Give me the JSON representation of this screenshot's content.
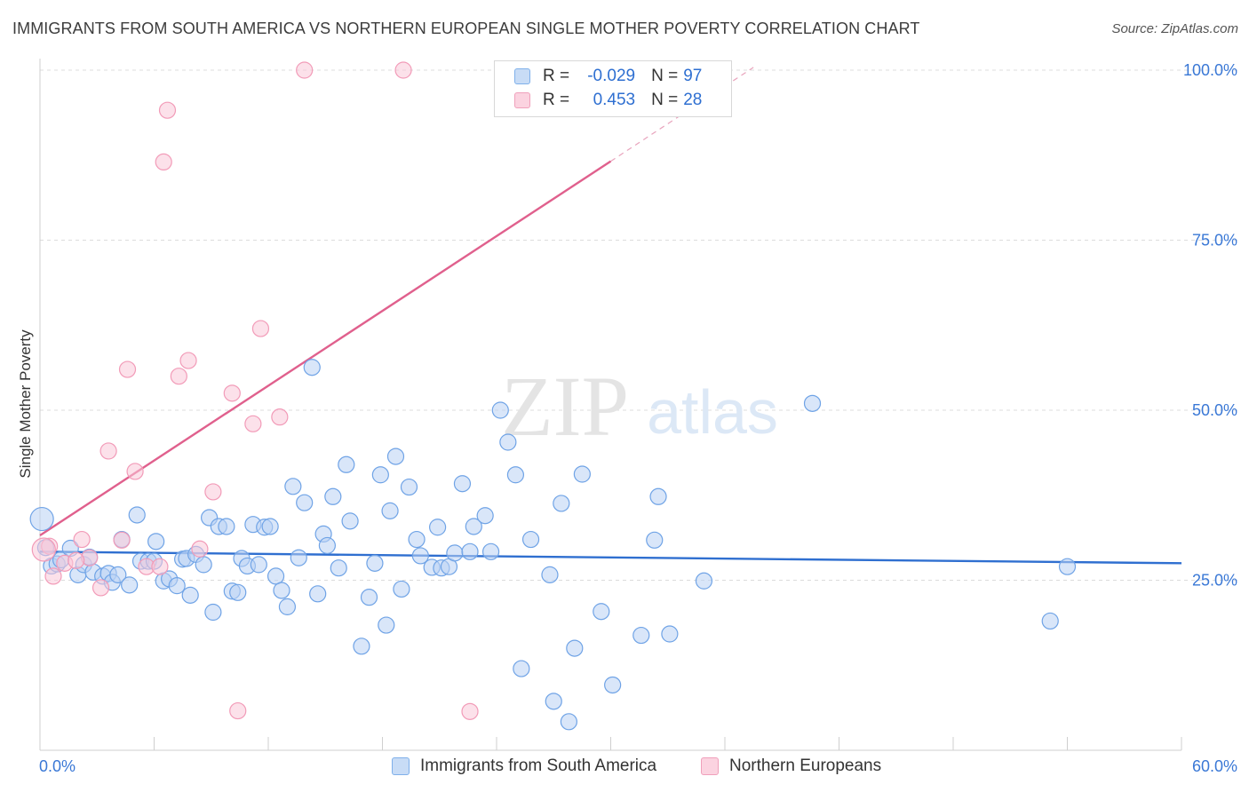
{
  "title": "IMMIGRANTS FROM SOUTH AMERICA VS NORTHERN EUROPEAN SINGLE MOTHER POVERTY CORRELATION CHART",
  "source": "Source: ZipAtlas.com",
  "watermark": {
    "zip": "ZIP",
    "atlas": "atlas"
  },
  "legend_stats": [
    {
      "r_label": "R =",
      "r_value": "-0.029",
      "n_label": "N =",
      "n_value": "97",
      "color": "#7fb0ea"
    },
    {
      "r_label": "R =",
      "r_value": "0.453",
      "n_label": "N =",
      "n_value": "28",
      "color": "#f0a0bb"
    }
  ],
  "chart_data": {
    "type": "scatter",
    "title": "IMMIGRANTS FROM SOUTH AMERICA VS NORTHERN EUROPEAN SINGLE MOTHER POVERTY CORRELATION CHART",
    "xlabel": "",
    "ylabel": "Single Mother Poverty",
    "xlim": [
      0,
      60
    ],
    "ylim": [
      0,
      100
    ],
    "x_tick_labels": [
      "0.0%",
      "60.0%"
    ],
    "y_tick_labels": [
      "25.0%",
      "50.0%",
      "75.0%",
      "100.0%"
    ],
    "y_ticks": [
      25,
      50,
      75,
      100
    ],
    "grid": true,
    "legend_position": "bottom",
    "series": [
      {
        "name": "Immigrants from South America",
        "color": "#6fa3e6",
        "trend": {
          "x": [
            0,
            60
          ],
          "y": [
            29.2,
            27.5
          ],
          "color": "#2f6fd0"
        },
        "points": [
          [
            0.1,
            34.0
          ],
          [
            0.3,
            29.8
          ],
          [
            0.6,
            27.1
          ],
          [
            0.9,
            27.4
          ],
          [
            1.1,
            28.0
          ],
          [
            1.6,
            29.7
          ],
          [
            2.0,
            25.8
          ],
          [
            2.3,
            27.3
          ],
          [
            2.6,
            28.4
          ],
          [
            2.8,
            26.2
          ],
          [
            3.3,
            25.6
          ],
          [
            3.6,
            26.0
          ],
          [
            3.8,
            24.7
          ],
          [
            4.1,
            25.8
          ],
          [
            4.3,
            31.0
          ],
          [
            4.7,
            24.3
          ],
          [
            5.1,
            34.6
          ],
          [
            5.3,
            27.8
          ],
          [
            5.7,
            27.8
          ],
          [
            6.0,
            27.8
          ],
          [
            6.1,
            30.7
          ],
          [
            6.5,
            24.9
          ],
          [
            6.8,
            25.2
          ],
          [
            7.2,
            24.2
          ],
          [
            7.5,
            28.1
          ],
          [
            7.7,
            28.2
          ],
          [
            7.9,
            22.8
          ],
          [
            8.2,
            28.8
          ],
          [
            8.6,
            27.3
          ],
          [
            8.9,
            34.2
          ],
          [
            9.1,
            20.3
          ],
          [
            9.4,
            32.9
          ],
          [
            9.8,
            32.9
          ],
          [
            10.1,
            23.4
          ],
          [
            10.4,
            23.2
          ],
          [
            10.6,
            28.2
          ],
          [
            10.9,
            27.1
          ],
          [
            11.2,
            33.2
          ],
          [
            11.5,
            27.3
          ],
          [
            11.8,
            32.8
          ],
          [
            12.1,
            32.9
          ],
          [
            12.4,
            25.6
          ],
          [
            12.7,
            23.5
          ],
          [
            13.0,
            21.1
          ],
          [
            13.3,
            38.8
          ],
          [
            13.6,
            28.3
          ],
          [
            13.9,
            36.4
          ],
          [
            14.3,
            56.3
          ],
          [
            14.6,
            23.0
          ],
          [
            14.9,
            31.8
          ],
          [
            15.1,
            30.1
          ],
          [
            15.4,
            37.3
          ],
          [
            15.7,
            26.8
          ],
          [
            16.1,
            42.0
          ],
          [
            16.3,
            33.7
          ],
          [
            16.9,
            15.3
          ],
          [
            17.3,
            22.5
          ],
          [
            17.6,
            27.5
          ],
          [
            17.9,
            40.5
          ],
          [
            18.2,
            18.4
          ],
          [
            18.4,
            35.2
          ],
          [
            18.7,
            43.2
          ],
          [
            19.0,
            23.7
          ],
          [
            19.4,
            38.7
          ],
          [
            19.8,
            31.0
          ],
          [
            20.0,
            28.6
          ],
          [
            20.6,
            26.9
          ],
          [
            20.9,
            32.8
          ],
          [
            21.1,
            26.8
          ],
          [
            21.5,
            27.0
          ],
          [
            21.8,
            29.0
          ],
          [
            22.2,
            39.2
          ],
          [
            22.6,
            29.2
          ],
          [
            22.8,
            32.9
          ],
          [
            23.4,
            34.5
          ],
          [
            23.7,
            29.2
          ],
          [
            24.2,
            50.0
          ],
          [
            24.6,
            45.3
          ],
          [
            25.0,
            40.5
          ],
          [
            25.3,
            12.0
          ],
          [
            25.8,
            31.0
          ],
          [
            26.8,
            25.8
          ],
          [
            27.0,
            7.2
          ],
          [
            27.4,
            36.3
          ],
          [
            27.8,
            4.2
          ],
          [
            28.1,
            15.0
          ],
          [
            28.5,
            40.6
          ],
          [
            29.5,
            20.4
          ],
          [
            30.1,
            9.6
          ],
          [
            31.6,
            16.9
          ],
          [
            32.3,
            30.9
          ],
          [
            32.5,
            37.3
          ],
          [
            33.1,
            17.1
          ],
          [
            34.9,
            24.9
          ],
          [
            40.6,
            51.0
          ],
          [
            53.1,
            19.0
          ],
          [
            54.0,
            27.0
          ]
        ]
      },
      {
        "name": "Northern Europeans",
        "color": "#f29bb8",
        "trend": {
          "x": [
            0,
            30
          ],
          "y": [
            31.6,
            86.6
          ],
          "color": "#e0608d",
          "dashed_extension": {
            "x": [
              30,
              37.5
            ],
            "y": [
              86.6,
              100.4
            ]
          }
        },
        "points": [
          [
            0.5,
            30.0
          ],
          [
            0.7,
            25.6
          ],
          [
            1.3,
            27.5
          ],
          [
            2.2,
            31.0
          ],
          [
            2.6,
            28.3
          ],
          [
            3.2,
            23.9
          ],
          [
            4.3,
            30.9
          ],
          [
            4.6,
            56.0
          ],
          [
            5.0,
            41.0
          ],
          [
            5.6,
            27.0
          ],
          [
            6.3,
            27.0
          ],
          [
            6.5,
            86.5
          ],
          [
            6.7,
            94.1
          ],
          [
            7.3,
            55.0
          ],
          [
            7.8,
            57.3
          ],
          [
            8.4,
            29.6
          ],
          [
            9.1,
            38.0
          ],
          [
            10.1,
            52.5
          ],
          [
            10.4,
            5.8
          ],
          [
            11.2,
            48.0
          ],
          [
            11.6,
            62.0
          ],
          [
            12.6,
            49.0
          ],
          [
            13.9,
            100.0
          ],
          [
            19.1,
            100.0
          ],
          [
            22.6,
            5.7
          ],
          [
            3.6,
            44.0
          ],
          [
            0.2,
            29.5
          ],
          [
            1.9,
            27.9
          ]
        ]
      }
    ]
  }
}
